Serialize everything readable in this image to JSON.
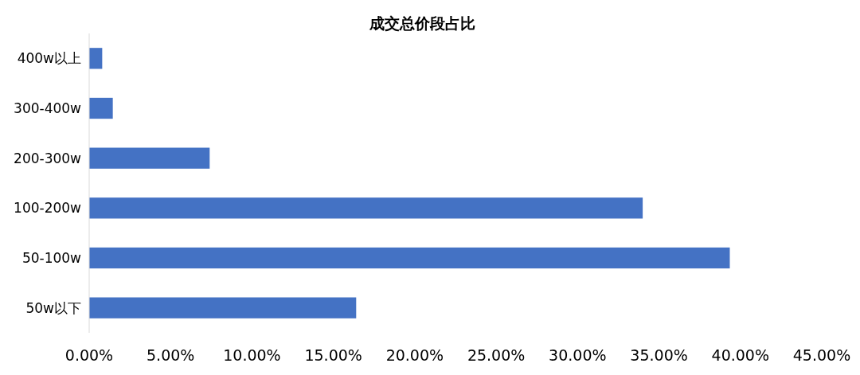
{
  "chart_data": {
    "type": "bar",
    "title": "成交总价段占比",
    "orientation": "horizontal",
    "categories": [
      "400w以上",
      "300-400w",
      "200-300w",
      "100-200w",
      "50-100w",
      "50w以下"
    ],
    "series": [
      {
        "color": "#4472c4",
        "values": [
          0.8,
          1.45,
          7.4,
          34.0,
          39.35,
          16.4
        ]
      }
    ],
    "xlim": [
      0,
      45
    ],
    "xticks": [
      {
        "value": 0,
        "label": "0.00%"
      },
      {
        "value": 5,
        "label": "5.00%"
      },
      {
        "value": 10,
        "label": "10.00%"
      },
      {
        "value": 15,
        "label": "15.00%"
      },
      {
        "value": 20,
        "label": "20.00%"
      },
      {
        "value": 25,
        "label": "25.00%"
      },
      {
        "value": 30,
        "label": "30.00%"
      },
      {
        "value": 35,
        "label": "35.00%"
      },
      {
        "value": 40,
        "label": "40.00%"
      },
      {
        "value": 45,
        "label": "45.00%"
      }
    ],
    "grid": false
  }
}
